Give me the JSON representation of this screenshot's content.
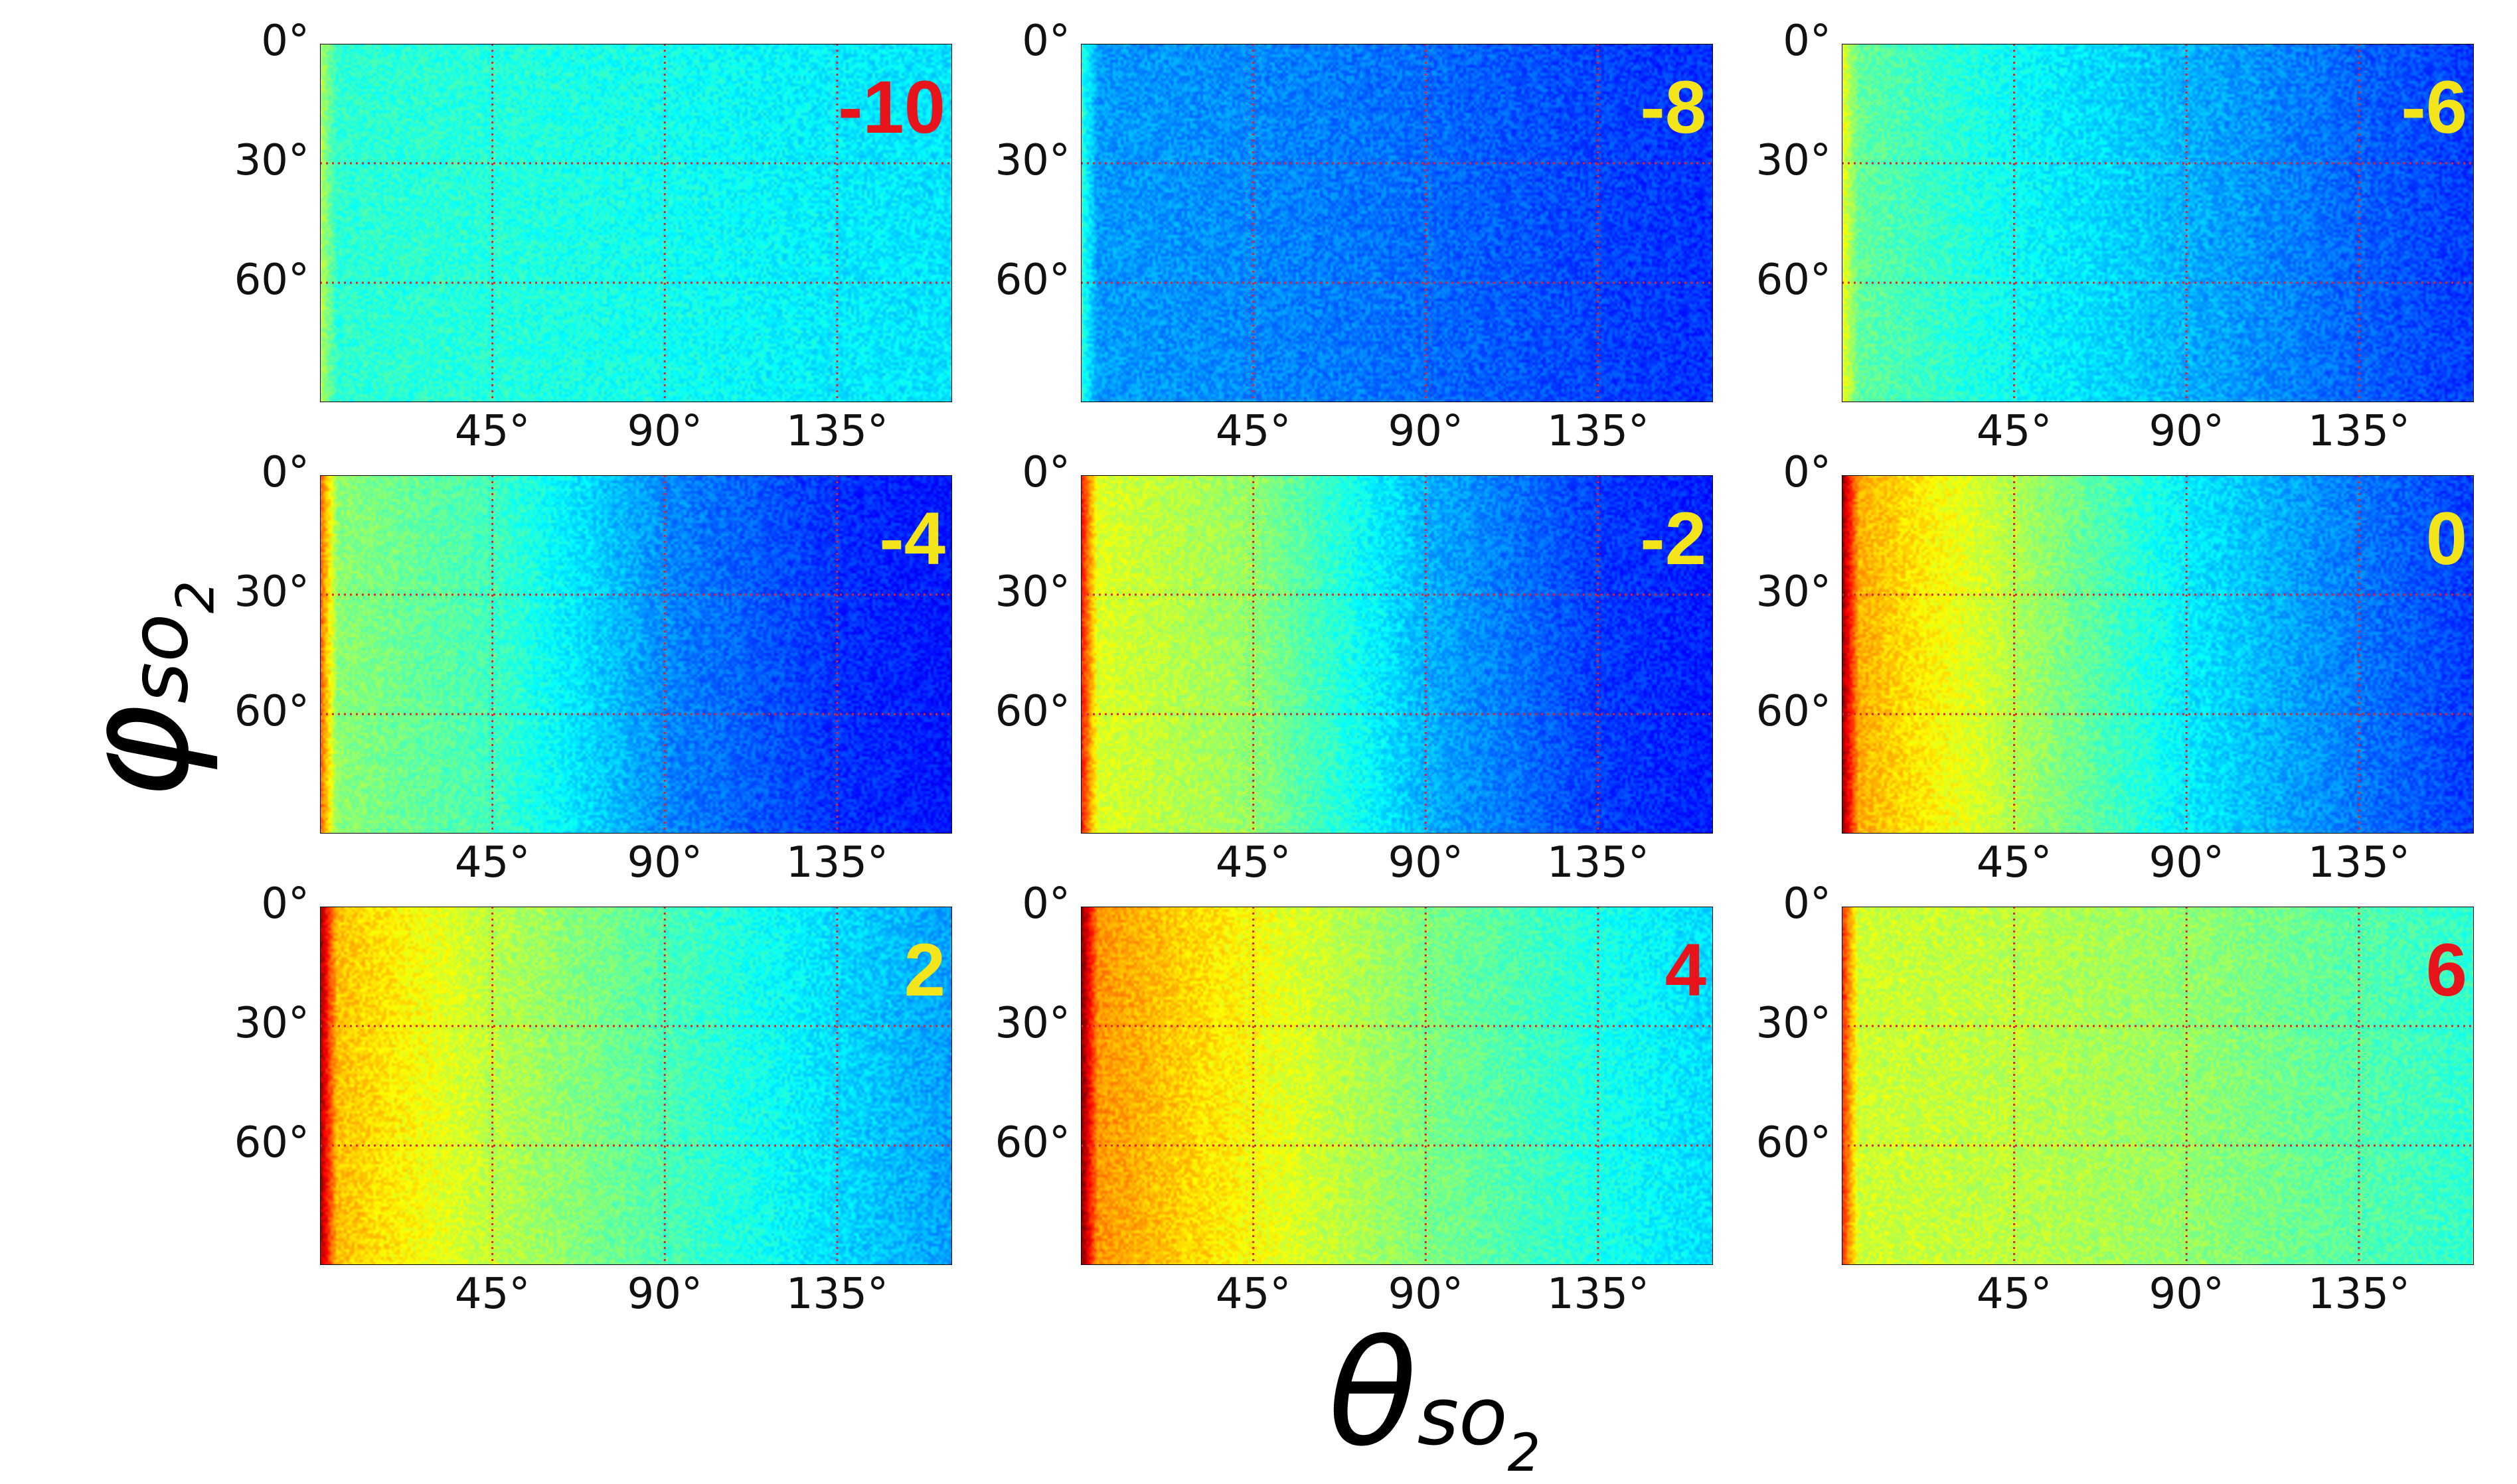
{
  "chart_data": {
    "type": "heatmap",
    "layout": "3x3 grid of heatmap panels",
    "colormap": "jet",
    "xlabel_symbol": "θ",
    "ylabel_symbol": "φ",
    "label_subscript": "so",
    "label_subscript_num": "2",
    "xlim": [
      0,
      165
    ],
    "ylim": [
      0,
      90
    ],
    "y_inverted": true,
    "xticks": [
      45,
      90,
      135
    ],
    "yticks": [
      0,
      30,
      60
    ],
    "xtick_labels": [
      "45°",
      "90°",
      "135°"
    ],
    "ytick_labels": [
      "0°",
      "30°",
      "60°"
    ],
    "grid": "red dotted at ticks",
    "panels": [
      {
        "label": "-10",
        "label_color": "#e8141b",
        "intensity_profile": {
          "theta": [
            0,
            45,
            90,
            135,
            165
          ],
          "level": [
            0.42,
            0.41,
            0.39,
            0.36,
            0.35
          ]
        }
      },
      {
        "label": "-8",
        "label_color": "#f3e51a",
        "intensity_profile": {
          "theta": [
            0,
            45,
            90,
            135,
            165
          ],
          "level": [
            0.28,
            0.26,
            0.23,
            0.19,
            0.17
          ]
        }
      },
      {
        "label": "-6",
        "label_color": "#f3e51a",
        "intensity_profile": {
          "theta": [
            0,
            45,
            90,
            135,
            165
          ],
          "level": [
            0.48,
            0.38,
            0.3,
            0.22,
            0.18
          ]
        }
      },
      {
        "label": "-4",
        "label_color": "#f3e51a",
        "intensity_profile": {
          "theta": [
            0,
            45,
            90,
            135,
            165
          ],
          "level": [
            0.52,
            0.44,
            0.26,
            0.17,
            0.14
          ]
        }
      },
      {
        "label": "-2",
        "label_color": "#f3e51a",
        "intensity_profile": {
          "theta": [
            0,
            45,
            90,
            135,
            165
          ],
          "level": [
            0.6,
            0.52,
            0.3,
            0.18,
            0.15
          ]
        }
      },
      {
        "label": "0",
        "label_color": "#f3e51a",
        "intensity_profile": {
          "theta": [
            0,
            45,
            90,
            135,
            165
          ],
          "level": [
            0.72,
            0.55,
            0.36,
            0.24,
            0.18
          ]
        }
      },
      {
        "label": "2",
        "label_color": "#f3e51a",
        "intensity_profile": {
          "theta": [
            0,
            45,
            90,
            135,
            165
          ],
          "level": [
            0.7,
            0.56,
            0.45,
            0.34,
            0.28
          ]
        }
      },
      {
        "label": "4",
        "label_color": "#e8141b",
        "intensity_profile": {
          "theta": [
            0,
            45,
            90,
            135,
            165
          ],
          "level": [
            0.74,
            0.62,
            0.5,
            0.4,
            0.34
          ]
        }
      },
      {
        "label": "6",
        "label_color": "#e8141b",
        "intensity_profile": {
          "theta": [
            0,
            45,
            90,
            135,
            165
          ],
          "level": [
            0.58,
            0.56,
            0.52,
            0.46,
            0.42
          ]
        }
      }
    ]
  }
}
